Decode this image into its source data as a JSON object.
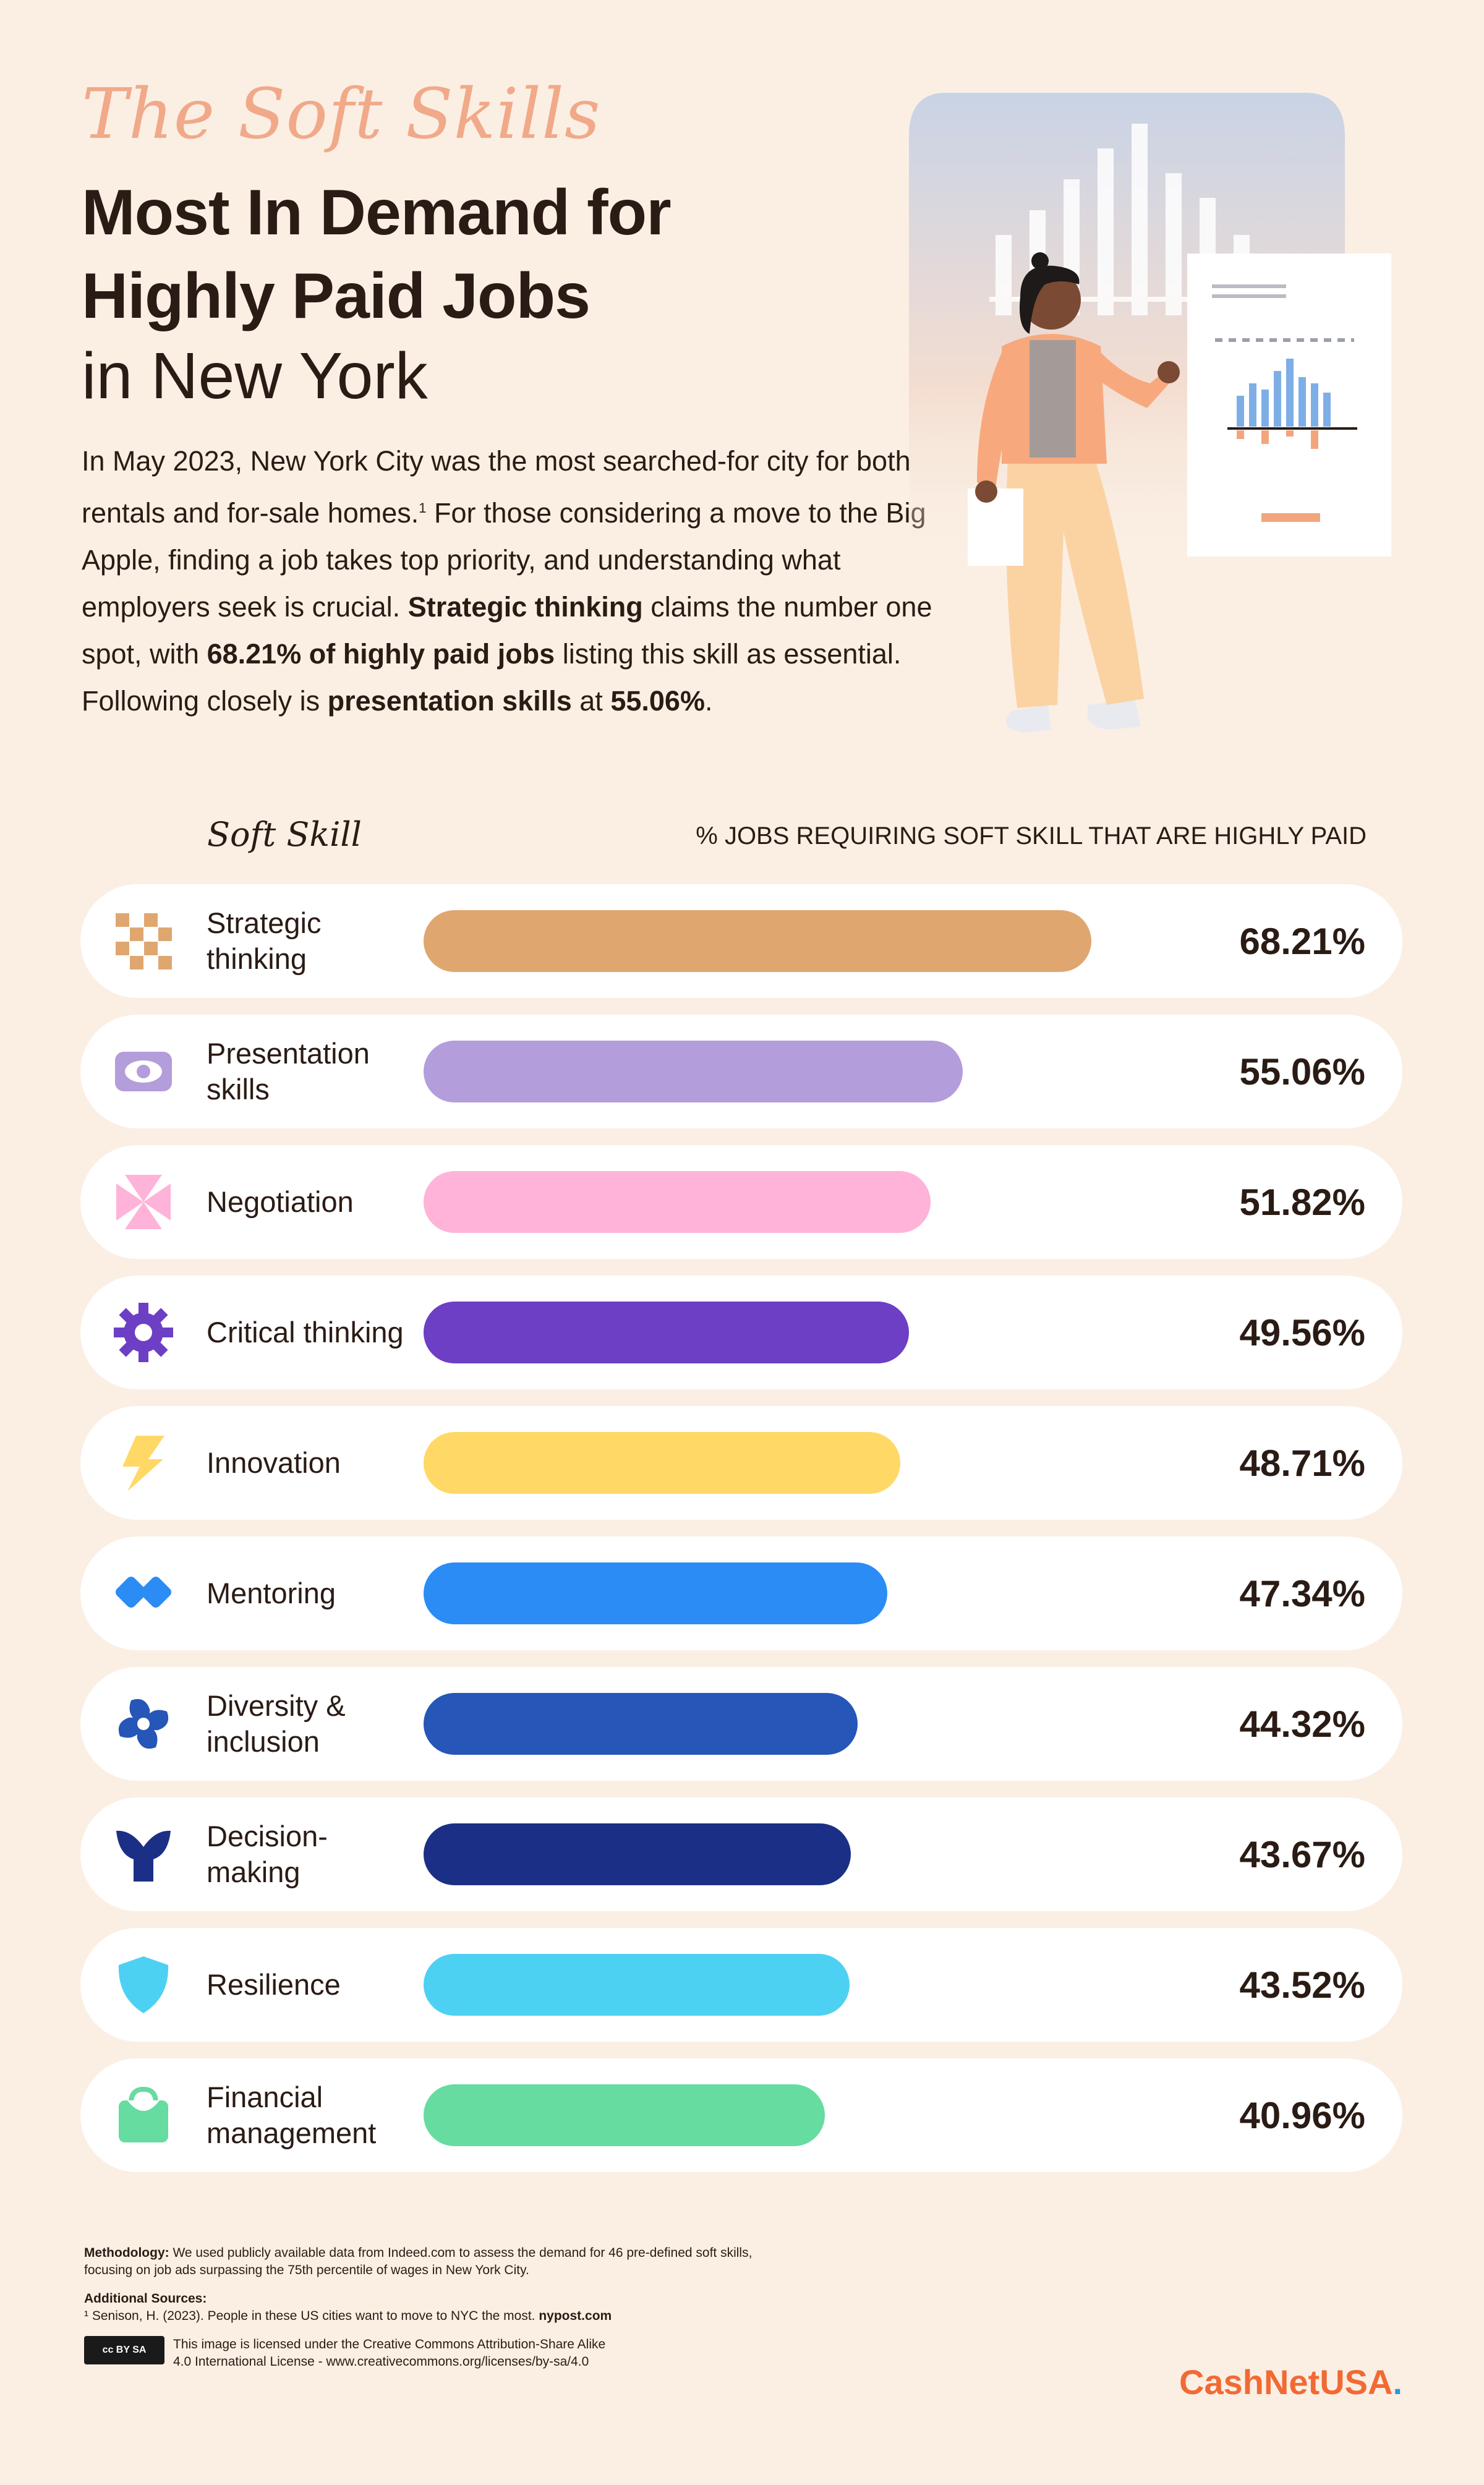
{
  "header": {
    "script_title": "The Soft Skills",
    "title_line_1": "Most In Demand for",
    "title_line_2": "Highly Paid Jobs",
    "title_line_3": "in New York"
  },
  "intro": {
    "p1": "In May 2023, New York City was the most searched-for city for both rentals and for-sale homes.",
    "sup": "1",
    "p2": " For those considering a move to the Big Apple, finding a job takes top priority, and understanding what employers seek is crucial. ",
    "b1": "Strategic thinking",
    "p3": " claims the number one spot, with ",
    "b2": "68.21% of highly paid jobs",
    "p4": " listing this skill as essential. Following closely is ",
    "b3": "presentation skills",
    "p5": " at ",
    "b4": "55.06%",
    "p6": "."
  },
  "chart_data": {
    "type": "bar",
    "orientation": "horizontal",
    "category_header": "Soft Skill",
    "value_header": "% JOBS REQUIRING SOFT SKILL THAT ARE HIGHLY PAID",
    "categories": [
      "Strategic thinking",
      "Presentation skills",
      "Negotiation",
      "Critical thinking",
      "Innovation",
      "Mentoring",
      "Diversity & inclusion",
      "Decision-making",
      "Resilience",
      "Financial management"
    ],
    "values": [
      68.21,
      55.06,
      51.82,
      49.56,
      48.71,
      47.34,
      44.32,
      43.67,
      43.52,
      40.96
    ],
    "value_labels": [
      "68.21%",
      "55.06%",
      "51.82%",
      "49.56%",
      "48.71%",
      "47.34%",
      "44.32%",
      "43.67%",
      "43.52%",
      "40.96%"
    ],
    "colors": [
      "#dfa76f",
      "#b39ddb",
      "#ffb3d9",
      "#6c3fc4",
      "#ffd866",
      "#2a8cf4",
      "#2556b8",
      "#1c2f86",
      "#4dd1f2",
      "#66dca0"
    ],
    "icons": [
      "checker-icon",
      "eye-icon",
      "pinwheel-icon",
      "gear-icon",
      "lightning-icon",
      "infinity-icon",
      "swirl-icon",
      "y-shape-icon",
      "shield-icon",
      "bag-icon"
    ],
    "xlim": [
      0,
      68.21
    ],
    "grid": false,
    "legend": "none"
  },
  "footer": {
    "methodology_label": "Methodology:",
    "methodology_text": " We used publicly available data from Indeed.com to assess the demand for 46 pre-defined soft skills, focusing on job ads surpassing the 75th percentile of wages in New York City.",
    "sources_label": "Additional Sources:",
    "source_1": "¹ Senison, H. (2023). People in these US cities want to move to NYC the most. ",
    "source_1_site": "nypost.com",
    "cc_badge": "cc BY SA",
    "license_line_1": "This image is licensed under the Creative Commons Attribution-Share Alike",
    "license_line_2": "4.0 International License - www.creativecommons.org/licenses/by-sa/4.0"
  },
  "brand": {
    "name": "CashNetUSA",
    "dot": "."
  }
}
